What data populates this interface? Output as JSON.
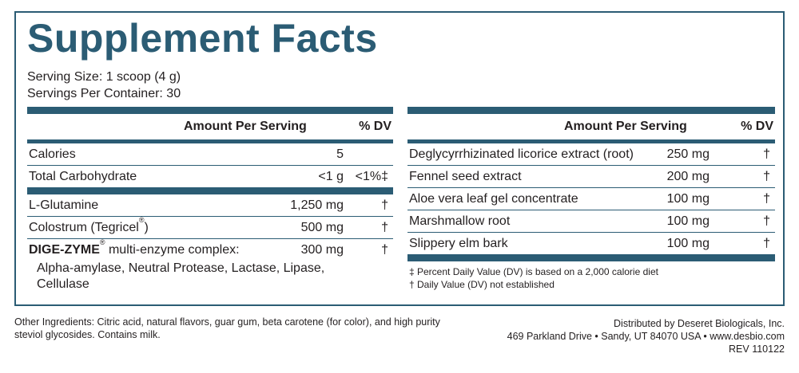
{
  "title": "Supplement Facts",
  "serving_size": "Serving Size:  1 scoop (4 g)",
  "servings_per_container": "Servings Per Container: 30",
  "headers": {
    "amount": "Amount Per Serving",
    "dv": "% DV"
  },
  "left_rows_top": [
    {
      "name": "Calories",
      "amount": "5",
      "dv": ""
    },
    {
      "name": "Total Carbohydrate",
      "amount": "<1 g",
      "dv": "<1%‡"
    }
  ],
  "left_rows_bottom": [
    {
      "name": "L-Glutamine",
      "amount": "1,250 mg",
      "dv": "†"
    },
    {
      "name": "Colostrum (Tegricel",
      "sup": "®",
      "name_end": ")",
      "amount": "500 mg",
      "dv": "†"
    }
  ],
  "enzyme": {
    "brand": "DIGE-ZYME",
    "reg": "®",
    "label": " multi-enzyme complex:",
    "amount": "300 mg",
    "dv": "†",
    "components_line1": "Alpha-amylase, Neutral Protease, Lactase, Lipase,",
    "components_line2": "Cellulase"
  },
  "right_rows": [
    {
      "name": "Deglycyrrhizinated licorice extract (root)",
      "amount": "250 mg",
      "dv": "†"
    },
    {
      "name": "Fennel seed extract",
      "amount": "200 mg",
      "dv": "†"
    },
    {
      "name": "Aloe vera leaf gel concentrate",
      "amount": "100 mg",
      "dv": "†"
    },
    {
      "name": "Marshmallow root",
      "amount": "100 mg",
      "dv": "†"
    },
    {
      "name": "Slippery elm bark",
      "amount": "100 mg",
      "dv": "†"
    }
  ],
  "footnotes": [
    "‡ Percent Daily Value (DV) is based on a 2,000 calorie diet",
    "† Daily Value (DV) not established"
  ],
  "other_ingredients": "Other Ingredients: Citric acid, natural flavors, guar gum,  beta carotene (for color), and high purity steviol glycosides. Contains milk.",
  "distributor": {
    "line1": "Distributed by Deseret Biologicals, Inc.",
    "line2": "469 Parkland Drive • Sandy, UT 84070 USA • www.desbio.com",
    "line3": "REV 110122"
  },
  "colors": {
    "accent": "#2b5c74",
    "text": "#231f20"
  }
}
